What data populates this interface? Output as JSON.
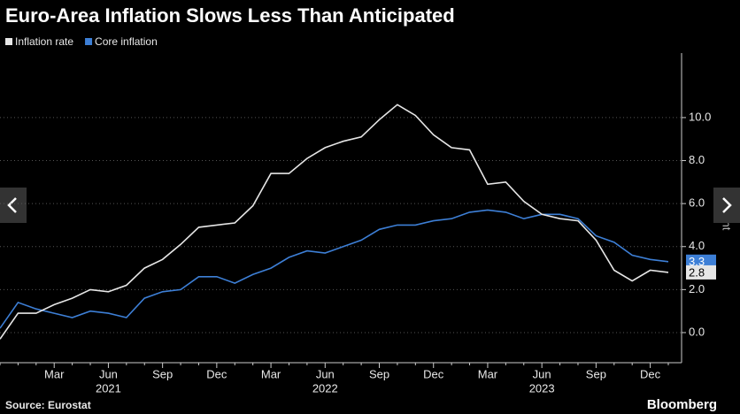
{
  "chart_data": {
    "type": "line",
    "title": "Euro-Area Inflation Slows Less Than Anticipated",
    "source": "Source: Eurostat",
    "brand": "Bloomberg",
    "y_axis_label": "Percent",
    "categories": [
      null,
      null,
      null,
      "Mar",
      null,
      null,
      "Jun",
      null,
      null,
      "Sep",
      null,
      null,
      "Dec",
      null,
      null,
      "Mar",
      null,
      null,
      "Jun",
      null,
      null,
      "Sep",
      null,
      null,
      "Dec",
      null,
      null,
      "Mar",
      null,
      null,
      "Jun",
      null,
      null,
      "Sep",
      null,
      null,
      "Dec",
      null
    ],
    "year_labels": [
      "2021",
      "2022",
      "2023"
    ],
    "series": [
      {
        "name": "Inflation rate",
        "color": "#e6e6e6",
        "end_label": "2.8",
        "values": [
          -0.3,
          0.9,
          0.9,
          1.3,
          1.6,
          2.0,
          1.9,
          2.2,
          3.0,
          3.4,
          4.1,
          4.9,
          5.0,
          5.1,
          5.9,
          7.4,
          7.4,
          8.1,
          8.6,
          8.9,
          9.1,
          9.9,
          10.6,
          10.1,
          9.2,
          8.6,
          8.5,
          6.9,
          7.0,
          6.1,
          5.5,
          5.3,
          5.2,
          4.3,
          2.9,
          2.4,
          2.9,
          2.8
        ]
      },
      {
        "name": "Core inflation",
        "color": "#3d7fd6",
        "end_label": "3.3",
        "values": [
          0.2,
          1.4,
          1.1,
          0.9,
          0.7,
          1.0,
          0.9,
          0.7,
          1.6,
          1.9,
          2.0,
          2.6,
          2.6,
          2.3,
          2.7,
          3.0,
          3.5,
          3.8,
          3.7,
          4.0,
          4.3,
          4.8,
          5.0,
          5.0,
          5.2,
          5.3,
          5.6,
          5.7,
          5.6,
          5.3,
          5.5,
          5.5,
          5.3,
          4.5,
          4.2,
          3.6,
          3.4,
          3.3
        ]
      }
    ],
    "ylim": [
      -1.4,
      13
    ],
    "yticks": [
      {
        "value": 0,
        "label": "0.0"
      },
      {
        "value": 2,
        "label": "2.0"
      },
      {
        "value": 4,
        "label": "4.0"
      },
      {
        "value": 6,
        "label": "6.0"
      },
      {
        "value": 8,
        "label": "8.0"
      },
      {
        "value": 10,
        "label": "10.0"
      }
    ],
    "grid": true
  }
}
